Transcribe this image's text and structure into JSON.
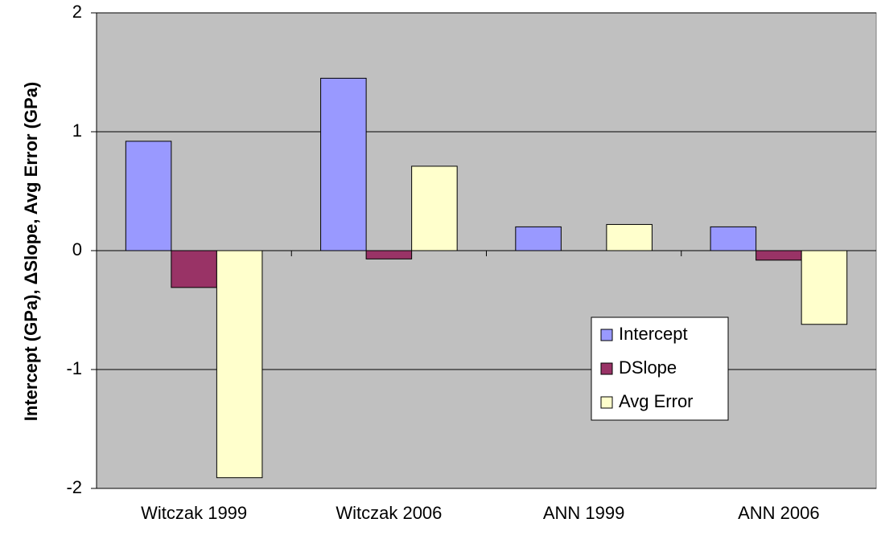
{
  "chart_data": {
    "type": "bar",
    "y_label": "Intercept (GPa), ΔSlope, Avg Error (GPa)",
    "categories": [
      "Witczak 1999",
      "Witczak 2006",
      "ANN 1999",
      "ANN 2006"
    ],
    "series": [
      {
        "name": "Intercept",
        "color": "#9999ff",
        "values": [
          0.92,
          1.45,
          0.2,
          0.2
        ]
      },
      {
        "name": "DSlope",
        "color": "#993366",
        "values": [
          -0.31,
          -0.07,
          0,
          -0.08
        ]
      },
      {
        "name": "Avg Error",
        "color": "#ffffcc",
        "values": [
          -1.91,
          0.71,
          0.22,
          -0.62
        ]
      }
    ],
    "ylim": [
      -2,
      2
    ],
    "yticks": [
      -2,
      -1,
      0,
      1,
      2
    ],
    "grid": true,
    "legend": "lower right"
  }
}
